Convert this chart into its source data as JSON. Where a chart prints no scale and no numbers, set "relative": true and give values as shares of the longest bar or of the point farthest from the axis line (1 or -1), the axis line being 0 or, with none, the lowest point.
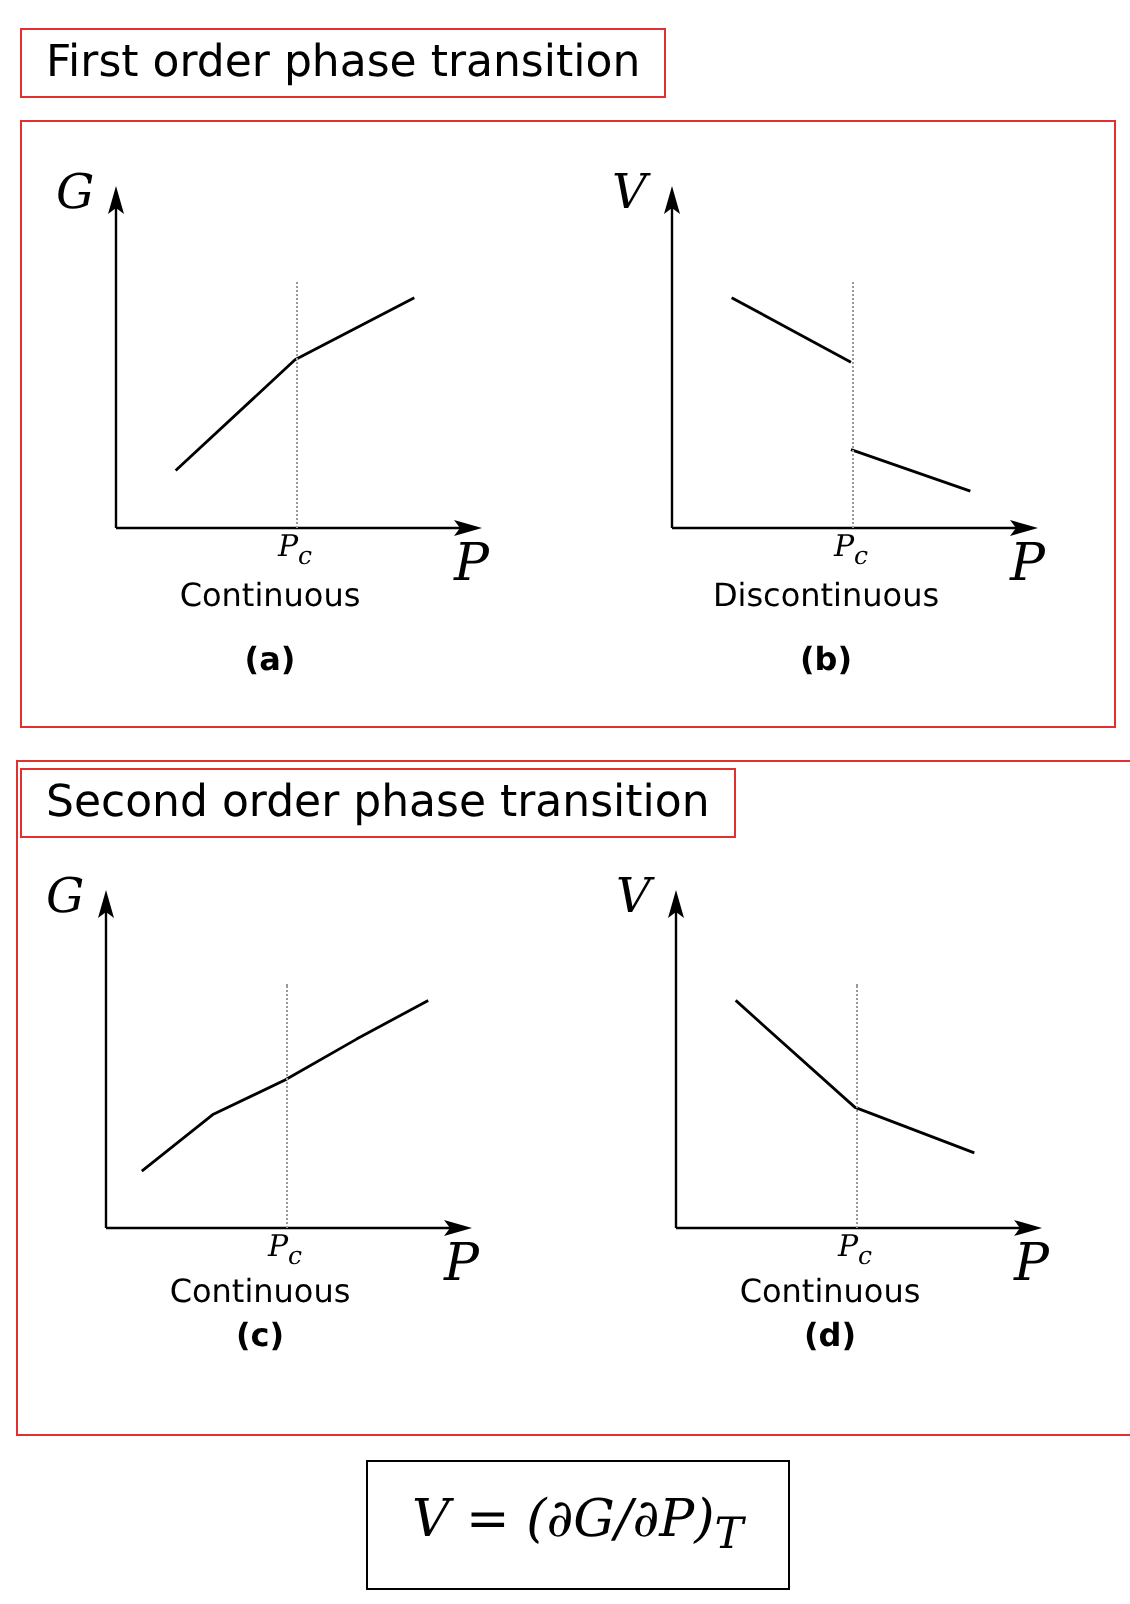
{
  "chart_data": [
    {
      "type": "line",
      "title": "First order phase transition",
      "xlabel": "P",
      "ylabel": "G",
      "relative": true,
      "marker": "none",
      "line_style": "solid",
      "categories": [
        null,
        null,
        null
      ],
      "series": [
        {
          "color": "#000000",
          "values": [
            0.25,
            0.73,
            1
          ]
        }
      ],
      "annotations": [
        "P$_{c}$",
        "Continuous",
        "(a)"
      ]
    },
    {
      "type": "line",
      "xlabel": "P",
      "ylabel": "V",
      "relative": true,
      "marker": "none",
      "line_style": "solid",
      "categories": [
        null,
        null,
        null
      ],
      "series": [
        {
          "color": "#000000",
          "values": [
            1,
            0.72,
            null
          ]
        },
        {
          "color": "#000000",
          "values": [
            null,
            0.34,
            0.16
          ]
        }
      ],
      "annotations": [
        "P$_{c}$",
        "Discontinuous",
        "(b)"
      ]
    },
    {
      "type": "line",
      "title": "Second order phase transition",
      "xlabel": "P",
      "ylabel": "G",
      "relative": true,
      "marker": "none",
      "line_style": "solid",
      "categories": [
        null,
        null,
        null,
        null,
        null
      ],
      "series": [
        {
          "color": "#000000",
          "values": [
            0.25,
            0.5,
            0.65,
            0.83,
            1
          ]
        }
      ],
      "annotations": [
        "P$_{c}$",
        "Continuous",
        "(c)"
      ]
    },
    {
      "type": "line",
      "xlabel": "P",
      "ylabel": "V",
      "relative": true,
      "marker": "none",
      "line_style": "solid",
      "categories": [
        null,
        null,
        null
      ],
      "series": [
        {
          "color": "#000000",
          "values": [
            1,
            0.53,
            0.33
          ]
        }
      ],
      "annotations": [
        "P$_{c}$",
        "Continuous",
        "(d)",
        "V = (∂G/∂P)$_{T}$"
      ]
    }
  ]
}
